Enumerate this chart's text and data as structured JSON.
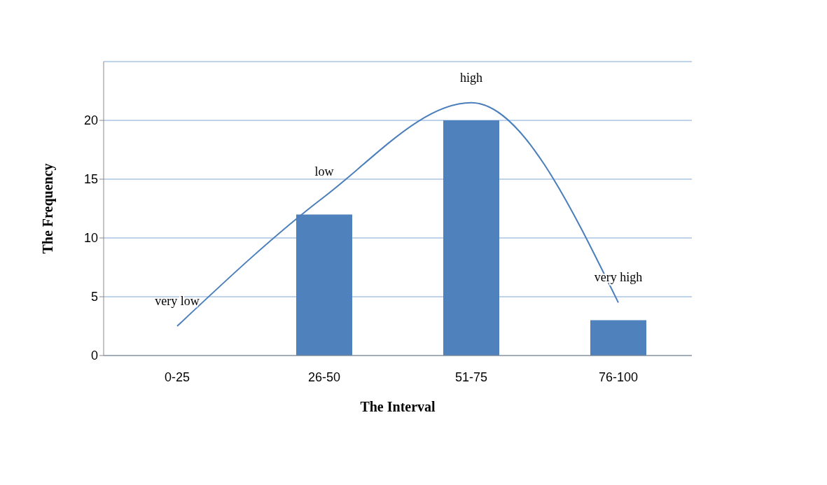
{
  "chart_data": {
    "type": "bar",
    "xlabel": "The Interval",
    "ylabel": "The Frequency",
    "categories": [
      "0-25",
      "26-50",
      "51-75",
      "76-100"
    ],
    "series": [
      {
        "color": "#4f81bd",
        "values": [
          0,
          12,
          20,
          3
        ]
      },
      {
        "type": "line",
        "color": "#4a7ebb",
        "values": [
          2.5,
          13.5,
          21.5,
          4.5
        ]
      }
    ],
    "ylim": [
      0,
      25
    ],
    "yticks": [
      0,
      5,
      10,
      15,
      20
    ],
    "grid": "y",
    "marker": "none",
    "annotations": [
      "very low",
      "low",
      "high",
      "very high"
    ]
  }
}
